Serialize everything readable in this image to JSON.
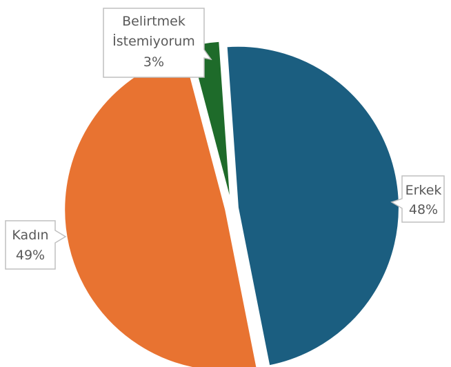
{
  "chart_data": {
    "type": "pie",
    "slices": [
      {
        "label": "Erkek",
        "value": 48,
        "display": "48%",
        "color": "#1B5E80"
      },
      {
        "label": "Kadın",
        "value": 49,
        "display": "49%",
        "color": "#E87331"
      },
      {
        "label": "Belirtmek İstemiyorum",
        "label_lines": [
          "Belirtmek",
          "İstemiyorum"
        ],
        "value": 3,
        "display": "3%",
        "color": "#1E6B2A"
      }
    ],
    "title": "",
    "legend": "none",
    "data_labels": "callouts with category name and percentage"
  }
}
